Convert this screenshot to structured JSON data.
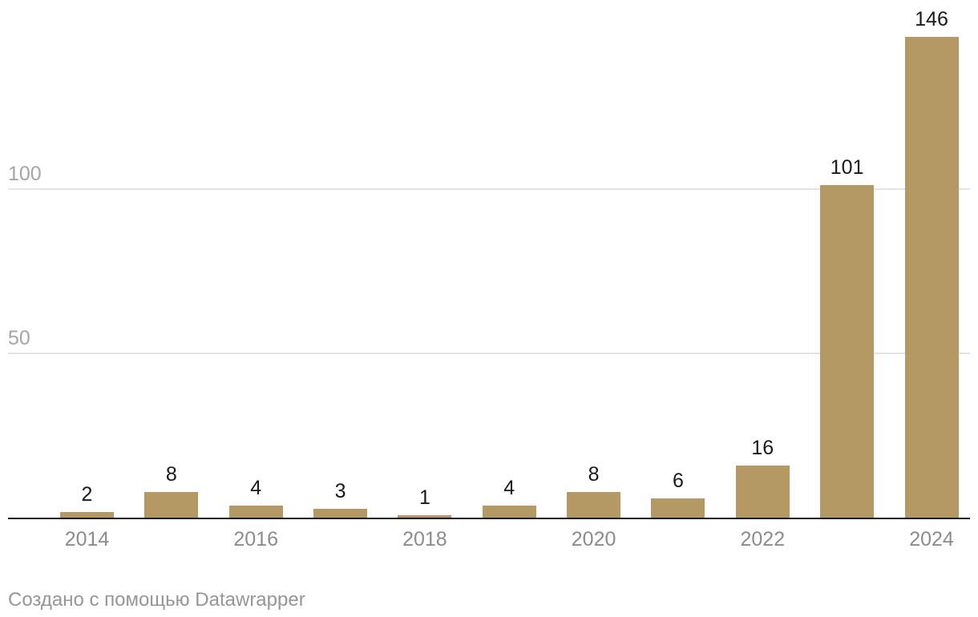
{
  "chart_data": {
    "type": "bar",
    "categories": [
      "2014",
      "2015",
      "2016",
      "2017",
      "2018",
      "2019",
      "2020",
      "2021",
      "2022",
      "2023",
      "2024"
    ],
    "values": [
      2,
      8,
      4,
      3,
      1,
      4,
      8,
      6,
      16,
      101,
      146
    ],
    "value_labels_shown": true,
    "x_tick_labels": [
      "2014",
      "2016",
      "2018",
      "2020",
      "2022",
      "2024"
    ],
    "y_gridlines": [
      50,
      100
    ],
    "ylim": [
      0,
      150
    ],
    "title": "",
    "xlabel": "",
    "ylabel": "",
    "legend_position": "none",
    "grid": "horizontal",
    "bar_color": "#b59963",
    "value_label_color": "#1a1a1a",
    "y_axis_label_color": "#a5a5a5",
    "x_axis_label_color": "#8c8c8c",
    "gridline_color": "#e3e3e3",
    "baseline_color": "#191919"
  },
  "footer": {
    "credit_text": "Создано с помощью Datawrapper",
    "color": "#969696"
  }
}
